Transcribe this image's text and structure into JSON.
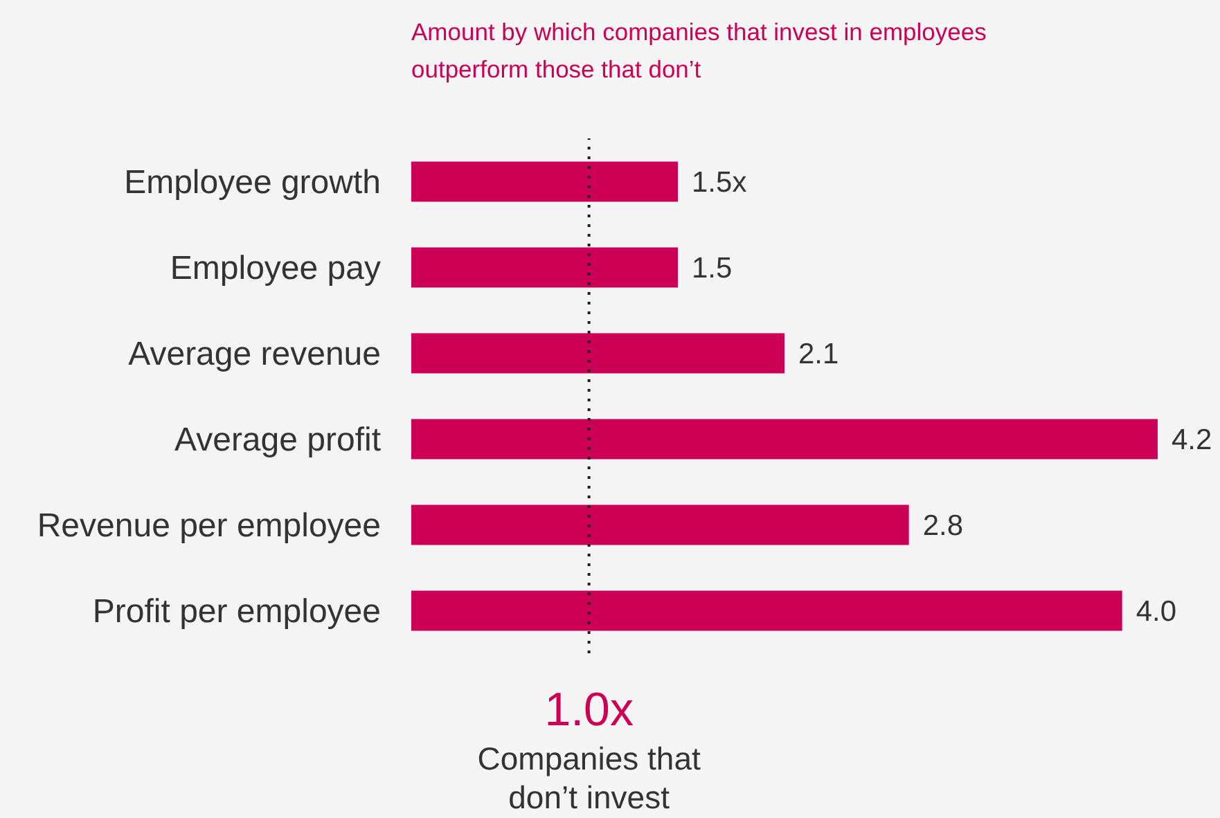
{
  "chart_data": {
    "type": "bar",
    "orientation": "horizontal",
    "title": "Amount by which companies that invest in employees outperform those that don’t",
    "categories": [
      "Employee growth",
      "Employee pay",
      "Average revenue",
      "Average profit",
      "Revenue per employee",
      "Profit per employee"
    ],
    "values": [
      1.5,
      1.5,
      2.1,
      4.2,
      2.8,
      4.0
    ],
    "value_labels": [
      "1.5x",
      "1.5",
      "2.1",
      "4.2",
      "2.8",
      "4.0"
    ],
    "color": "#cc0055",
    "ref_lines": [
      {
        "axis": "x",
        "value": 1,
        "label": "1.0x",
        "color": "#222222",
        "line_style": "dotted"
      }
    ],
    "annotations": [
      "Companies that don’t invest"
    ],
    "grid": false,
    "legend": false
  }
}
